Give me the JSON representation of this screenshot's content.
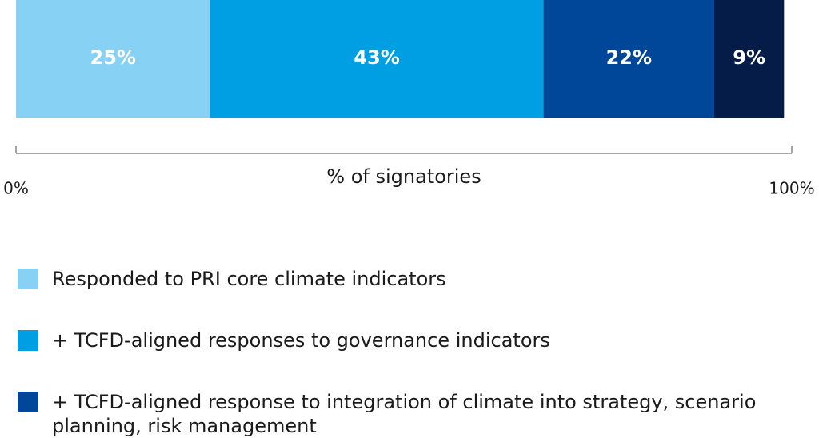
{
  "chart_data": {
    "type": "stacked-bar-horizontal",
    "categories": [
      null
    ],
    "series": [
      {
        "name": "Responded to PRI core climate indicators",
        "color": "#87d1f5",
        "values": [
          25
        ],
        "value_labels": [
          "25%"
        ]
      },
      {
        "name": "+ TCFD-aligned responses to governance indicators",
        "color": "#009fe3",
        "values": [
          43
        ],
        "value_labels": [
          "43%"
        ]
      },
      {
        "name": "+ TCFD-aligned response to integration of climate into strategy, scenario planning, risk management",
        "color": "#00479a",
        "values": [
          22
        ],
        "value_labels": [
          "22%"
        ]
      },
      {
        "color": "#051c48",
        "values": [
          9
        ],
        "value_labels": [
          "9%"
        ]
      }
    ],
    "xlabel": "% of signatories",
    "xlim": [
      0,
      100
    ],
    "xticks": [
      {
        "value": 0,
        "label": "0%"
      },
      {
        "value": 100,
        "label": "100%"
      }
    ]
  }
}
